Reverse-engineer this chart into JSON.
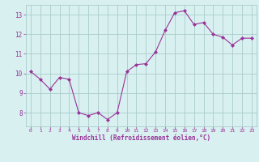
{
  "x": [
    0,
    1,
    2,
    3,
    4,
    5,
    6,
    7,
    8,
    9,
    10,
    11,
    12,
    13,
    14,
    15,
    16,
    17,
    18,
    19,
    20,
    21,
    22,
    23
  ],
  "y": [
    10.1,
    9.7,
    9.2,
    9.8,
    9.7,
    8.0,
    7.85,
    8.0,
    7.65,
    8.0,
    10.1,
    10.45,
    10.5,
    11.1,
    12.2,
    13.1,
    13.2,
    12.5,
    12.6,
    12.0,
    11.85,
    11.45,
    11.8,
    11.8
  ],
  "line_color": "#993399",
  "marker": "D",
  "marker_size": 2.0,
  "bg_color": "#d8f0f0",
  "grid_color": "#aacccc",
  "tick_color": "#993399",
  "label_color": "#993399",
  "xlabel": "Windchill (Refroidissement éolien,°C)",
  "xlim": [
    -0.5,
    23.5
  ],
  "ylim": [
    7.3,
    13.5
  ],
  "yticks": [
    8,
    9,
    10,
    11,
    12,
    13
  ],
  "xticks": [
    0,
    1,
    2,
    3,
    4,
    5,
    6,
    7,
    8,
    9,
    10,
    11,
    12,
    13,
    14,
    15,
    16,
    17,
    18,
    19,
    20,
    21,
    22,
    23
  ],
  "figsize": [
    3.2,
    2.0
  ],
  "dpi": 100
}
